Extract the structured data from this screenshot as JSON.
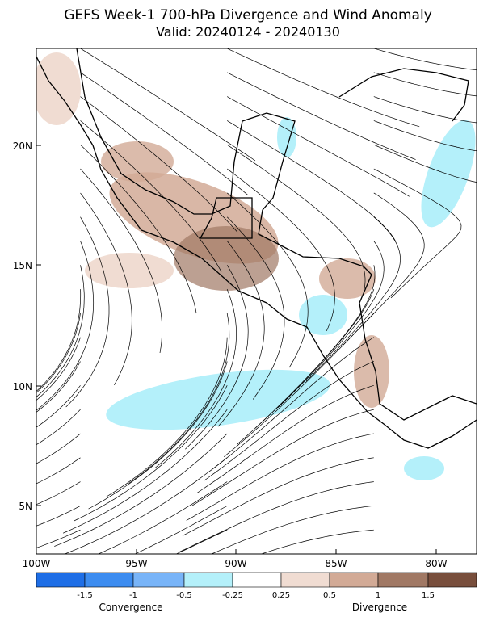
{
  "header": {
    "title": "GEFS Week-1 700-hPa Divergence and Wind Anomaly",
    "subtitle": "Valid: 20240124 - 20240130"
  },
  "map": {
    "lat_labels": [
      "20N",
      "15N",
      "10N",
      "5N"
    ],
    "lon_labels": [
      "100W",
      "95W",
      "90W",
      "85W",
      "80W"
    ]
  },
  "colorbar": {
    "colors": [
      "#1e6ee6",
      "#3c8cf0",
      "#78b4f8",
      "#b4f0fa",
      "#ffffff",
      "#f0dcd2",
      "#d2aa96",
      "#a07864",
      "#784e3c"
    ],
    "labels": [
      -1.5,
      -1,
      -0.5,
      -0.25,
      0.25,
      0.5,
      1,
      1.5
    ],
    "left_title": "Convergence",
    "right_title": "Divergence"
  }
}
